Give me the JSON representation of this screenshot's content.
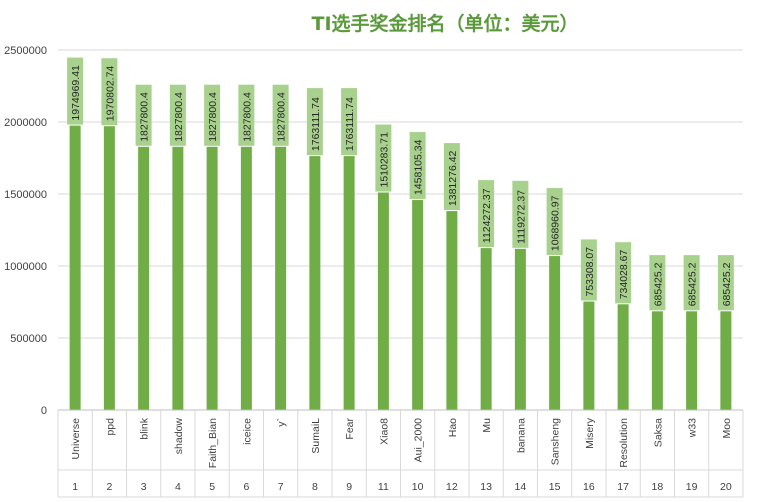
{
  "chart_data": {
    "type": "bar",
    "title": "TI选手奖金排名（单位：美元）",
    "ylim": [
      0,
      2500000
    ],
    "yticks": [
      "0",
      "500000",
      "1000000",
      "1500000",
      "2000000",
      "2500000"
    ],
    "grid": true,
    "legend": "none",
    "bar_color": "#70ad47",
    "label_bg_color": "#a9d18e",
    "categories": [
      "Universe",
      "ppd",
      "blink",
      "shadow",
      "Faith_Bian",
      "iceice",
      "y`",
      "SumaiL",
      "Fear",
      "Xiao8",
      "Aui_2000",
      "Hao",
      "Mu",
      "banana",
      "Sansheng",
      "Misery",
      "Resolution",
      "Saksa",
      "w33",
      "Moo"
    ],
    "ranks": [
      "1",
      "2",
      "3",
      "4",
      "5",
      "6",
      "7",
      "8",
      "9",
      "11",
      "10",
      "12",
      "13",
      "14",
      "15",
      "16",
      "17",
      "18",
      "19",
      "20"
    ],
    "values": [
      1974969.41,
      1970802.74,
      1827800.4,
      1827800.4,
      1827800.4,
      1827800.4,
      1827800.4,
      1763111.74,
      1763111.74,
      1510283.71,
      1458105.34,
      1381276.42,
      1124272.37,
      1119272.37,
      1068960.97,
      753308.07,
      734028.67,
      685425.2,
      685425.2,
      685425.2
    ],
    "value_labels": [
      "1974969.41",
      "1970802.74",
      "1827800.4",
      "1827800.4",
      "1827800.4",
      "1827800.4",
      "1827800.4",
      "1763111.74",
      "1763111.74",
      "1510283.71",
      "1458105.34",
      "1381276.42",
      "1124272.37",
      "1119272.37",
      "1068960.97",
      "753308.07",
      "734028.67",
      "685425.2",
      "685425.2",
      "685425.2"
    ]
  }
}
